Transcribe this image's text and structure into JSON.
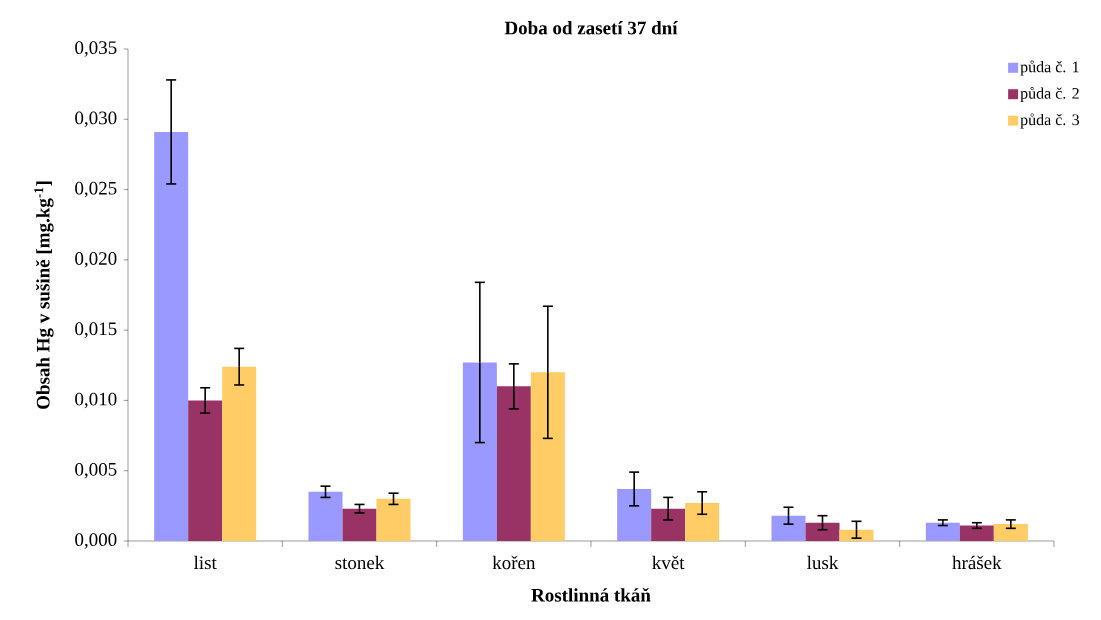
{
  "chart_data": {
    "type": "bar",
    "title": "Doba od zasetí 37 dní",
    "xlabel": "Rostlinná tkáň",
    "ylabel": "Obsah Hg v sušině [mg.kg$^{-1}$]",
    "categories": [
      "list",
      "stonek",
      "kořen",
      "květ",
      "lusk",
      "hrášek"
    ],
    "series": [
      {
        "name": "půda č. 1",
        "color": "#9999ff",
        "values": [
          0.0291,
          0.0035,
          0.0127,
          0.0037,
          0.0018,
          0.0013
        ],
        "errors": [
          0.0037,
          0.0004,
          0.0057,
          0.0012,
          0.0006,
          0.0002
        ]
      },
      {
        "name": "půda č. 2",
        "color": "#993366",
        "values": [
          0.01,
          0.0023,
          0.011,
          0.0023,
          0.0013,
          0.0011
        ],
        "errors": [
          0.0009,
          0.0003,
          0.0016,
          0.0008,
          0.0005,
          0.0002
        ]
      },
      {
        "name": "půda č. 3",
        "color": "#ffcc66",
        "values": [
          0.0124,
          0.003,
          0.012,
          0.0027,
          0.0008,
          0.0012
        ],
        "errors": [
          0.0013,
          0.0004,
          0.0047,
          0.0008,
          0.0006,
          0.0003
        ]
      }
    ],
    "ylim": [
      0,
      0.035
    ],
    "yticks": [
      {
        "value": 0,
        "label": "0,000"
      },
      {
        "value": 0.005,
        "label": "0,005"
      },
      {
        "value": 0.01,
        "label": "0,010"
      },
      {
        "value": 0.015,
        "label": "0,015"
      },
      {
        "value": 0.02,
        "label": "0,020"
      },
      {
        "value": 0.025,
        "label": "0,025"
      },
      {
        "value": 0.03,
        "label": "0,030"
      },
      {
        "value": 0.035,
        "label": "0,035"
      }
    ],
    "grid": false,
    "legend": "top right"
  }
}
